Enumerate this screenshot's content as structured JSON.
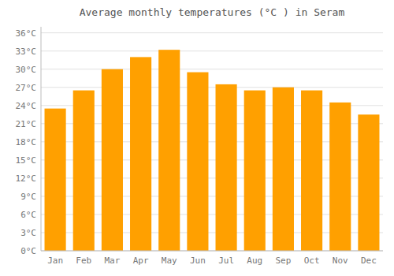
{
  "chart_data": {
    "type": "bar",
    "title": "Average monthly temperatures (°C ) in Seram",
    "categories": [
      "Jan",
      "Feb",
      "Mar",
      "Apr",
      "May",
      "Jun",
      "Jul",
      "Aug",
      "Sep",
      "Oct",
      "Nov",
      "Dec"
    ],
    "values": [
      23.5,
      26.5,
      30.0,
      32.0,
      33.2,
      29.5,
      27.5,
      26.5,
      27.0,
      26.5,
      24.5,
      22.5
    ],
    "color": "#FFA000",
    "ylim": [
      0,
      37
    ],
    "yticks": [
      {
        "value": 0,
        "label": "0°C"
      },
      {
        "value": 3,
        "label": "3°C"
      },
      {
        "value": 6,
        "label": "6°C"
      },
      {
        "value": 9,
        "label": "9°C"
      },
      {
        "value": 12,
        "label": "12°C"
      },
      {
        "value": 15,
        "label": "15°C"
      },
      {
        "value": 18,
        "label": "18°C"
      },
      {
        "value": 21,
        "label": "21°C"
      },
      {
        "value": 24,
        "label": "24°C"
      },
      {
        "value": 27,
        "label": "27°C"
      },
      {
        "value": 30,
        "label": "30°C"
      },
      {
        "value": 33,
        "label": "33°C"
      },
      {
        "value": 36,
        "label": "36°C"
      }
    ],
    "grid": true
  }
}
